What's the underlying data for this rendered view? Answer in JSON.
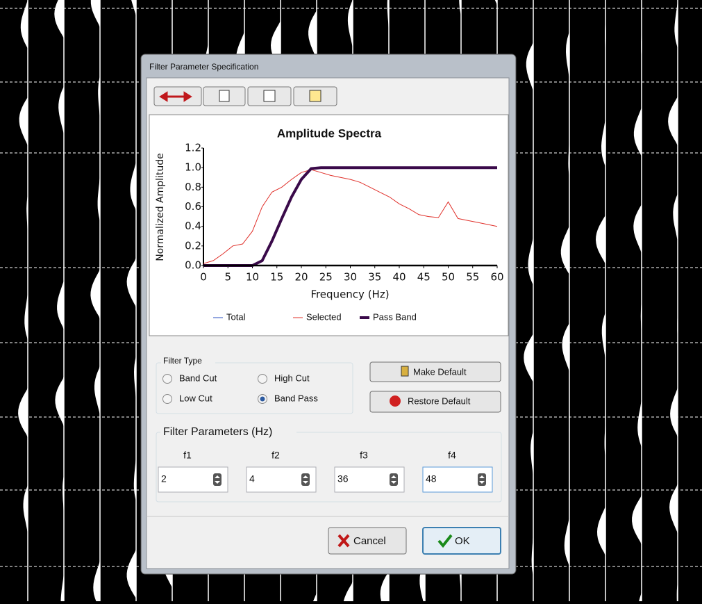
{
  "window": {
    "title": "Filter Parameter Specification"
  },
  "chart_data": {
    "type": "line",
    "title": "Amplitude Spectra",
    "xlabel": "Frequency (Hz)",
    "ylabel": "Normalized Amplitude",
    "x": [
      0,
      2,
      4,
      6,
      8,
      10,
      12,
      14,
      16,
      18,
      20,
      22,
      24,
      26,
      28,
      30,
      32,
      34,
      36,
      38,
      40,
      42,
      44,
      46,
      48,
      50,
      52,
      54,
      56,
      58,
      60
    ],
    "series": [
      {
        "name": "Total",
        "color": "#2a4fc0",
        "values": [
          null,
          null,
          null,
          null,
          null,
          null,
          null,
          null,
          null,
          null,
          null,
          null,
          null,
          null,
          null,
          null,
          null,
          null,
          null,
          null,
          null,
          null,
          null,
          null,
          null,
          null,
          null,
          null,
          null,
          null,
          null
        ]
      },
      {
        "name": "Selected",
        "color": "#e0302a",
        "values": [
          0.02,
          0.05,
          0.12,
          0.2,
          0.22,
          0.35,
          0.6,
          0.75,
          0.8,
          0.88,
          0.95,
          0.98,
          0.95,
          0.92,
          0.9,
          0.88,
          0.85,
          0.8,
          0.75,
          0.7,
          0.63,
          0.58,
          0.52,
          0.5,
          0.49,
          0.65,
          0.48,
          0.46,
          0.44,
          0.42,
          0.4
        ]
      },
      {
        "name": "Pass Band",
        "color": "#3a0a4a",
        "values": [
          0,
          0,
          0,
          0,
          0,
          0,
          0.05,
          0.25,
          0.48,
          0.7,
          0.88,
          0.99,
          1,
          1,
          1,
          1,
          1,
          1,
          1,
          1,
          1,
          1,
          1,
          1,
          1,
          1,
          1,
          1,
          1,
          1,
          1
        ]
      }
    ],
    "xlim": [
      0,
      60
    ],
    "xticks": [
      0,
      5,
      10,
      15,
      20,
      25,
      30,
      35,
      40,
      45,
      50,
      55,
      60
    ],
    "ylim": [
      0,
      1.2
    ],
    "yticks": [
      {
        "value": 0,
        "label": "0.0"
      },
      0.2,
      0.4,
      0.6,
      0.8,
      {
        "value": 1,
        "label": "1.0"
      },
      1.2
    ],
    "grid": false,
    "legend": "bottom"
  },
  "filter_type": {
    "label": "Filter Type",
    "options": [
      {
        "label": "Band Cut",
        "checked": false
      },
      {
        "label": "High Cut",
        "checked": false
      },
      {
        "label": "Low Cut",
        "checked": false
      },
      {
        "label": "Band Pass",
        "checked": true
      }
    ]
  },
  "buttons": {
    "make_default": "Make Default",
    "restore_default": "Restore Default",
    "cancel": "Cancel",
    "ok": "OK"
  },
  "filter_parameters": {
    "label": "Filter Parameters (Hz)",
    "names": [
      "f1",
      "f2",
      "f3",
      "f4"
    ],
    "values": [
      2,
      4,
      36,
      48
    ]
  }
}
